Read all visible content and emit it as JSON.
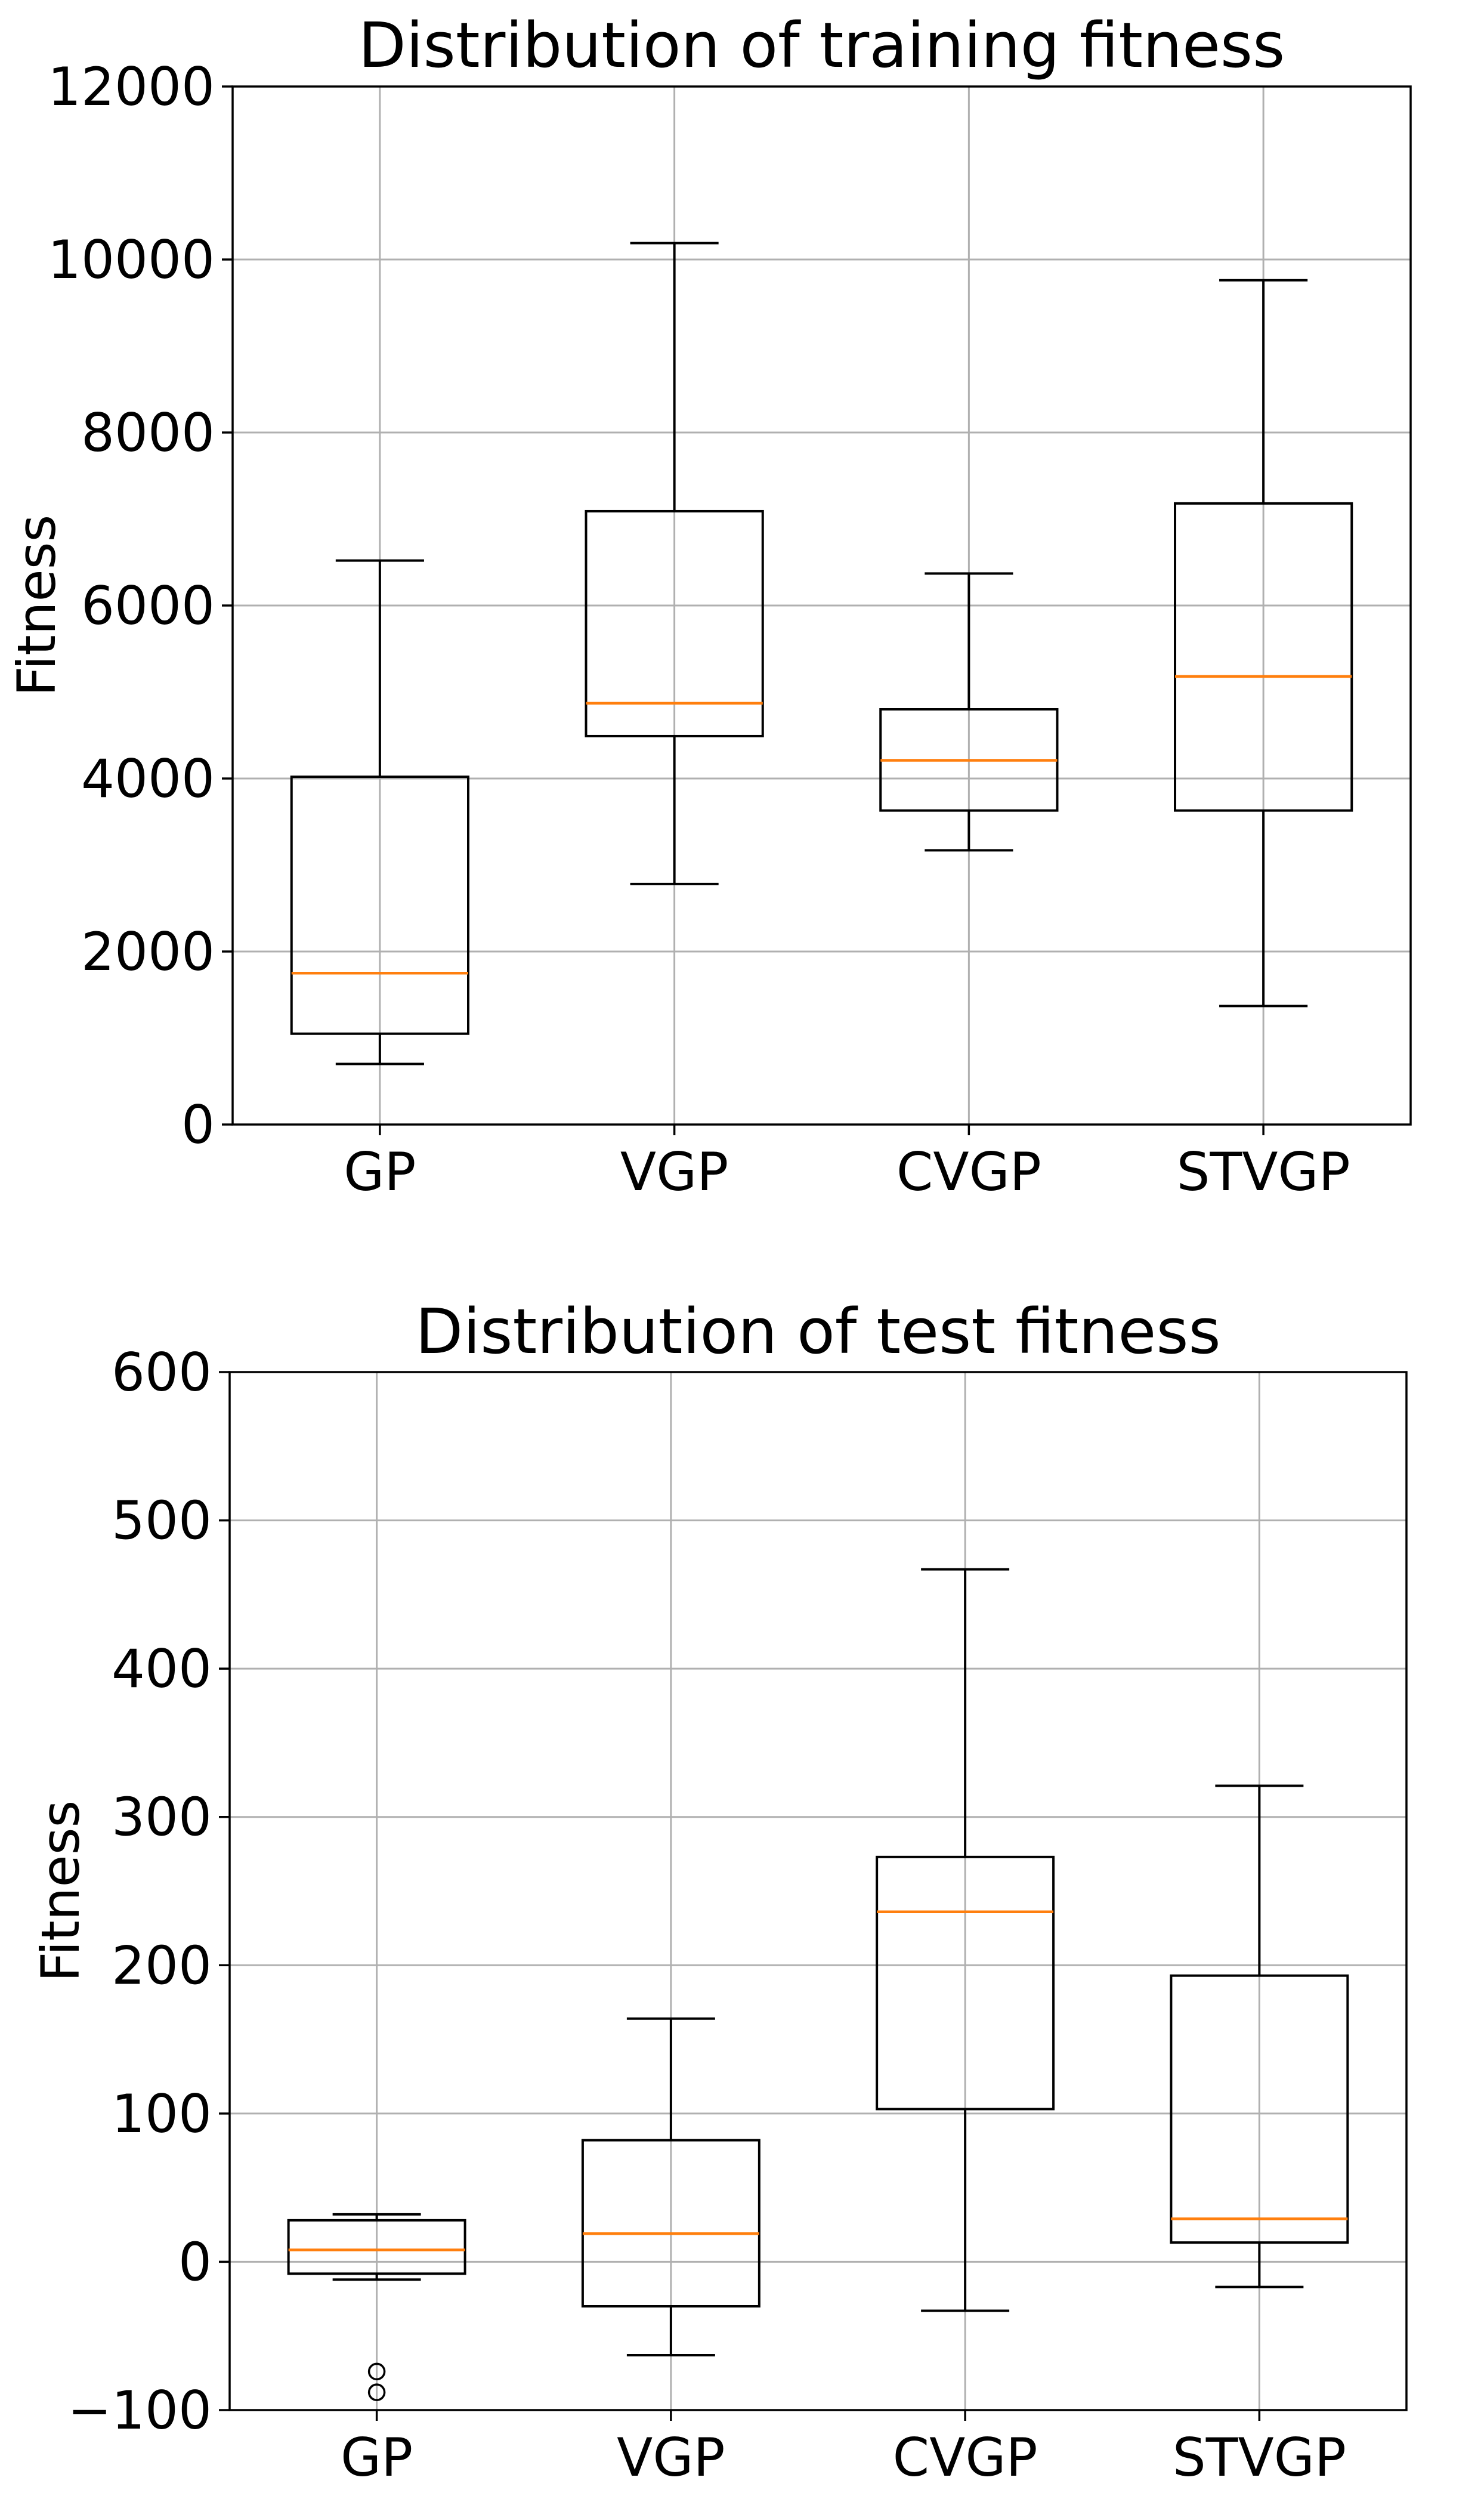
{
  "chart_data": [
    {
      "type": "box",
      "title": "Distribution of training fitness",
      "xlabel": "",
      "ylabel": "Fitness",
      "ylim": [
        0,
        12000
      ],
      "yticks": [
        0,
        2000,
        4000,
        6000,
        8000,
        10000,
        12000
      ],
      "ytick_labels": [
        "0",
        "2000",
        "4000",
        "6000",
        "8000",
        "10000",
        "12000"
      ],
      "grid": true,
      "categories": [
        "GP",
        "VGP",
        "CVGP",
        "STVGP"
      ],
      "boxes": [
        {
          "name": "GP",
          "whisker_low": 700,
          "q1": 1050,
          "median": 1750,
          "q3": 4020,
          "whisker_high": 6520,
          "fliers": []
        },
        {
          "name": "VGP",
          "whisker_low": 2780,
          "q1": 4490,
          "median": 4870,
          "q3": 7090,
          "whisker_high": 10190,
          "fliers": []
        },
        {
          "name": "CVGP",
          "whisker_low": 3170,
          "q1": 3630,
          "median": 4210,
          "q3": 4800,
          "whisker_high": 6370,
          "fliers": []
        },
        {
          "name": "STVGP",
          "whisker_low": 1370,
          "q1": 3630,
          "median": 5180,
          "q3": 7180,
          "whisker_high": 9760,
          "fliers": []
        }
      ]
    },
    {
      "type": "box",
      "title": "Distribution of test fitness",
      "xlabel": "",
      "ylabel": "Fitness",
      "ylim": [
        -100,
        600
      ],
      "yticks": [
        -100,
        0,
        100,
        200,
        300,
        400,
        500,
        600
      ],
      "ytick_labels": [
        "−100",
        "0",
        "100",
        "200",
        "300",
        "400",
        "500",
        "600"
      ],
      "grid": true,
      "categories": [
        "GP",
        "VGP",
        "CVGP",
        "STVGP"
      ],
      "boxes": [
        {
          "name": "GP",
          "whisker_low": -12,
          "q1": -8,
          "median": 8,
          "q3": 28,
          "whisker_high": 32,
          "fliers": [
            -74,
            -88
          ]
        },
        {
          "name": "VGP",
          "whisker_low": -63,
          "q1": -30,
          "median": 19,
          "q3": 82,
          "whisker_high": 164,
          "fliers": []
        },
        {
          "name": "CVGP",
          "whisker_low": -33,
          "q1": 103,
          "median": 236,
          "q3": 273,
          "whisker_high": 467,
          "fliers": []
        },
        {
          "name": "STVGP",
          "whisker_low": -17,
          "q1": 13,
          "median": 29,
          "q3": 193,
          "whisker_high": 321,
          "fliers": []
        }
      ]
    }
  ]
}
